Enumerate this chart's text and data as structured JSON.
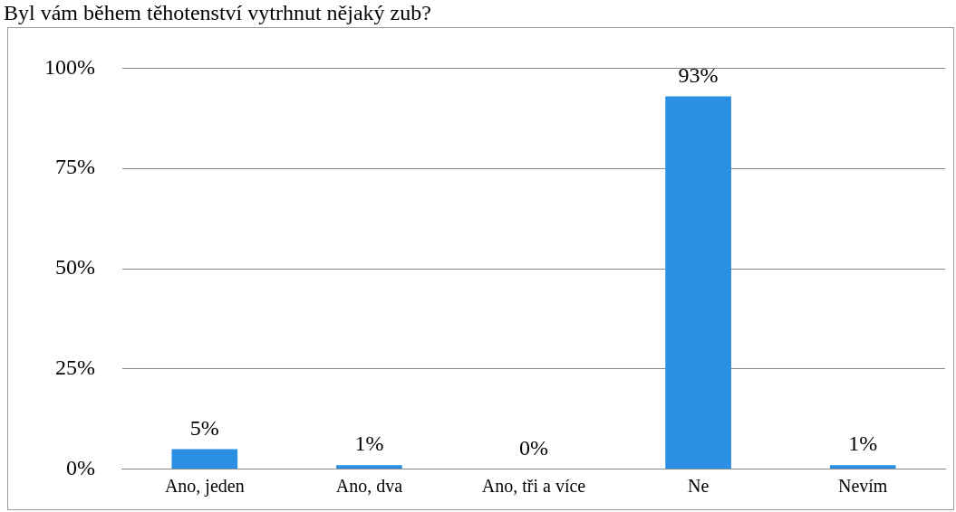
{
  "chart_data": {
    "type": "bar",
    "title": "Byl vám během těhotenství vytrhnut nějaký zub?",
    "categories": [
      "Ano, jeden",
      "Ano, dva",
      "Ano, tři a více",
      "Ne",
      "Nevím"
    ],
    "values": [
      5,
      1,
      0,
      93,
      1
    ],
    "color": "#2b8fe3",
    "value_labels": [
      "5%",
      "1%",
      "0%",
      "93%",
      "1%"
    ],
    "ylim": [
      0,
      100
    ],
    "yticks": [
      {
        "value": 0,
        "label": "0%"
      },
      {
        "value": 25,
        "label": "25%"
      },
      {
        "value": 50,
        "label": "50%"
      },
      {
        "value": 75,
        "label": "75%"
      },
      {
        "value": 100,
        "label": "100%"
      }
    ],
    "grid": "y",
    "legend": false
  }
}
